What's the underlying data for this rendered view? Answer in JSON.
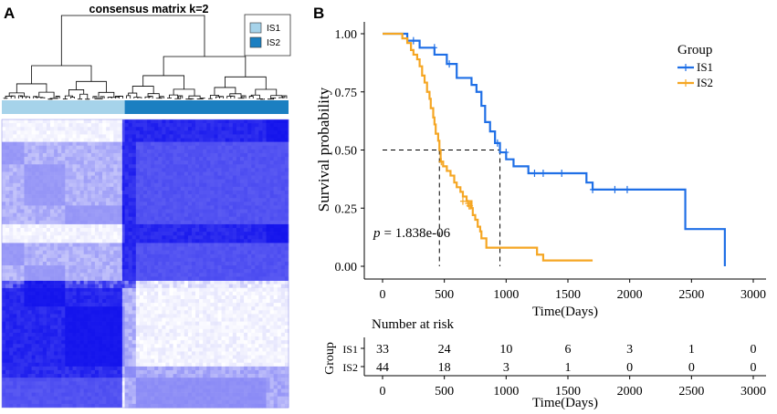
{
  "colors": {
    "is1_bar": "#a6d3ea",
    "is2_bar": "#1b7fc1",
    "heat_high": "#1414ec",
    "heat_low": "#ffffff",
    "km_is1": "#1f6fe6",
    "km_is2": "#f5a623"
  },
  "panel_a": {
    "label": "A",
    "title": "consensus matrix k=2",
    "legend": [
      "IS1",
      "IS2"
    ],
    "cluster_sizes": [
      33,
      44
    ]
  },
  "panel_b": {
    "label": "B",
    "p_label": "p",
    "p_value": "= 1.838e-06",
    "risk_title": "Number at risk",
    "risk_group_label": "Group",
    "risk_xlabel": "Time(Days)"
  },
  "chart_data": [
    {
      "type": "heatmap",
      "title": "consensus matrix k=2",
      "groups": [
        "IS1",
        "IS2"
      ],
      "group_sizes": [
        33,
        44
      ],
      "value_range": [
        0,
        1
      ]
    },
    {
      "type": "line",
      "title": "",
      "xlabel": "Time(Days)",
      "ylabel": "Survival probability",
      "xlim": [
        0,
        3000
      ],
      "ylim": [
        0,
        1
      ],
      "xticks": [
        0,
        500,
        1000,
        1500,
        2000,
        2500,
        3000
      ],
      "yticks": [
        "0.00",
        "0.25",
        "0.50",
        "0.75",
        "1.00"
      ],
      "legend_title": "Group",
      "median_survival": {
        "IS1": 950,
        "IS2": 460
      },
      "series": [
        {
          "name": "IS1",
          "steps": [
            [
              0,
              1.0
            ],
            [
              200,
              0.97
            ],
            [
              300,
              0.94
            ],
            [
              420,
              0.91
            ],
            [
              520,
              0.87
            ],
            [
              600,
              0.81
            ],
            [
              720,
              0.78
            ],
            [
              760,
              0.75
            ],
            [
              800,
              0.69
            ],
            [
              830,
              0.62
            ],
            [
              870,
              0.58
            ],
            [
              910,
              0.53
            ],
            [
              950,
              0.49
            ],
            [
              1000,
              0.46
            ],
            [
              1060,
              0.43
            ],
            [
              1180,
              0.4
            ],
            [
              1650,
              0.36
            ],
            [
              1700,
              0.33
            ],
            [
              2440,
              0.33
            ],
            [
              2450,
              0.16
            ],
            [
              2770,
              0.16
            ],
            [
              2770,
              0.0
            ]
          ],
          "end": 2770,
          "censor": [
            [
              250,
              0.97
            ],
            [
              420,
              0.94
            ],
            [
              540,
              0.87
            ],
            [
              930,
              0.53
            ],
            [
              1000,
              0.49
            ],
            [
              1230,
              0.4
            ],
            [
              1300,
              0.4
            ],
            [
              1450,
              0.4
            ],
            [
              1700,
              0.33
            ],
            [
              1880,
              0.33
            ],
            [
              1980,
              0.33
            ]
          ]
        },
        {
          "name": "IS2",
          "steps": [
            [
              0,
              1.0
            ],
            [
              160,
              0.98
            ],
            [
              200,
              0.96
            ],
            [
              230,
              0.93
            ],
            [
              250,
              0.91
            ],
            [
              280,
              0.89
            ],
            [
              300,
              0.86
            ],
            [
              320,
              0.82
            ],
            [
              340,
              0.79
            ],
            [
              360,
              0.75
            ],
            [
              380,
              0.72
            ],
            [
              390,
              0.68
            ],
            [
              410,
              0.64
            ],
            [
              420,
              0.61
            ],
            [
              430,
              0.57
            ],
            [
              450,
              0.54
            ],
            [
              460,
              0.5
            ],
            [
              470,
              0.45
            ],
            [
              490,
              0.43
            ],
            [
              520,
              0.41
            ],
            [
              550,
              0.39
            ],
            [
              580,
              0.36
            ],
            [
              600,
              0.34
            ],
            [
              630,
              0.32
            ],
            [
              650,
              0.3
            ],
            [
              680,
              0.28
            ],
            [
              720,
              0.25
            ],
            [
              730,
              0.22
            ],
            [
              750,
              0.2
            ],
            [
              770,
              0.17
            ],
            [
              790,
              0.15
            ],
            [
              800,
              0.12
            ],
            [
              840,
              0.08
            ],
            [
              1250,
              0.05
            ],
            [
              1300,
              0.025
            ]
          ],
          "end": 1700,
          "censor": [
            [
              475,
              0.45
            ],
            [
              650,
              0.28
            ],
            [
              690,
              0.27
            ],
            [
              700,
              0.26
            ],
            [
              710,
              0.26
            ]
          ]
        }
      ],
      "risk_table": {
        "title": "Number at risk",
        "times": [
          0,
          500,
          1000,
          1500,
          2000,
          2500,
          3000
        ],
        "rows": [
          {
            "group": "IS1",
            "counts": [
              33,
              24,
              10,
              6,
              3,
              1,
              0
            ]
          },
          {
            "group": "IS2",
            "counts": [
              44,
              18,
              3,
              1,
              0,
              0,
              0
            ]
          }
        ]
      }
    }
  ]
}
